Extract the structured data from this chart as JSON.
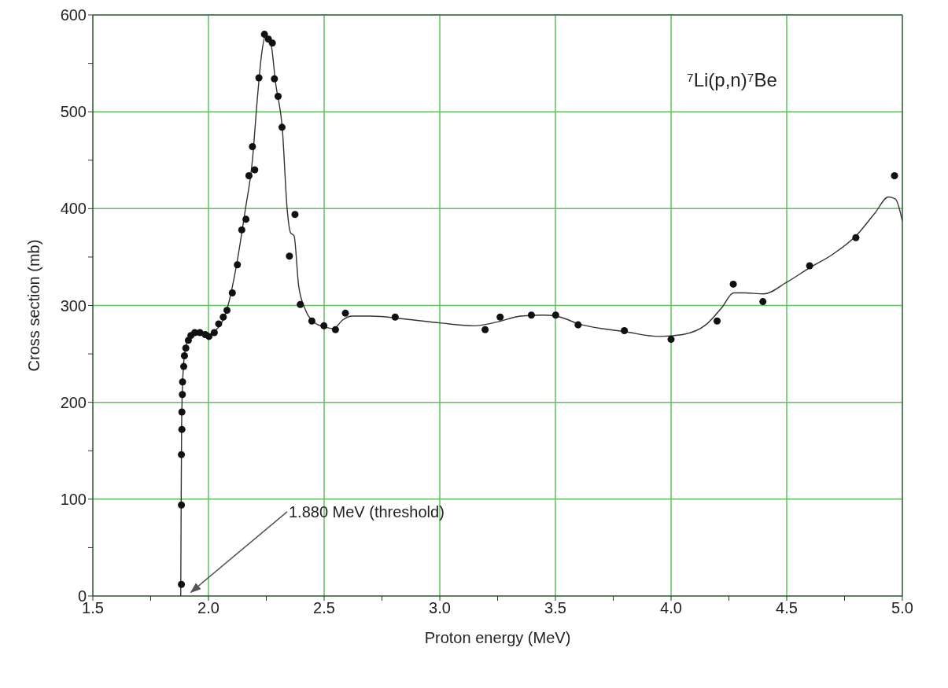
{
  "chart_data": {
    "type": "scatter",
    "title": "⁷Li(p,n)⁷Be",
    "xlabel": "Proton energy (MeV)",
    "ylabel": "Cross section (mb)",
    "xlim": [
      1.5,
      5.0
    ],
    "ylim": [
      0,
      600
    ],
    "xticks": [
      {
        "value": 1.5,
        "label": "1.5"
      },
      {
        "value": 1.75,
        "label": null
      },
      {
        "value": 2.0,
        "label": "2.0"
      },
      {
        "value": 2.25,
        "label": null
      },
      {
        "value": 2.5,
        "label": "2.5"
      },
      {
        "value": 2.75,
        "label": null
      },
      {
        "value": 3.0,
        "label": "3.0"
      },
      {
        "value": 3.25,
        "label": null
      },
      {
        "value": 3.5,
        "label": "3.5"
      },
      {
        "value": 3.75,
        "label": null
      },
      {
        "value": 4.0,
        "label": "4.0"
      },
      {
        "value": 4.25,
        "label": null
      },
      {
        "value": 4.5,
        "label": "4.5"
      },
      {
        "value": 4.75,
        "label": null
      },
      {
        "value": 5.0,
        "label": "5.0"
      }
    ],
    "yticks": [
      0,
      {
        "value": 50,
        "label": null
      },
      100,
      {
        "value": 150,
        "label": null
      },
      200,
      {
        "value": 250,
        "label": null
      },
      300,
      {
        "value": 350,
        "label": null
      },
      400,
      {
        "value": 450,
        "label": null
      },
      500,
      {
        "value": 550,
        "label": null
      },
      600
    ],
    "grid": true,
    "marker": "circle",
    "annotations": [
      "1.880 MeV (threshold)"
    ],
    "series": [
      {
        "type": "scatter",
        "color": "#111111",
        "x": [
          1.883,
          1.883,
          1.883,
          1.885,
          1.885,
          1.887,
          1.888,
          1.893,
          1.896,
          1.902,
          1.913,
          1.924,
          1.941,
          1.963,
          1.986,
          2.002,
          2.025,
          2.044,
          2.064,
          2.08,
          2.103,
          2.125,
          2.144,
          2.162,
          2.175,
          2.19,
          2.2,
          2.218,
          2.242,
          2.259,
          2.276,
          2.285,
          2.301,
          2.318,
          2.35,
          2.374,
          2.397,
          2.447,
          2.499,
          2.549,
          2.592,
          2.807,
          3.196,
          3.261,
          3.396,
          3.501,
          3.598,
          3.798,
          4.0,
          4.199,
          4.269,
          4.397,
          4.599,
          4.799,
          4.966
        ],
        "values": [
          12,
          94,
          146,
          172,
          190,
          208,
          221,
          237,
          248,
          256,
          264,
          269,
          272,
          272,
          270,
          268,
          272,
          281,
          288,
          295,
          313,
          342,
          378,
          389,
          434,
          464,
          440,
          535,
          580,
          575,
          571,
          534,
          516,
          484,
          351,
          394,
          301,
          284,
          279,
          275,
          292,
          288,
          275,
          288,
          290,
          290,
          280,
          274,
          265,
          284,
          322,
          304,
          341,
          370,
          434
        ]
      },
      {
        "type": "line",
        "color": "#333333",
        "line_style": "solid",
        "marker": "none",
        "x": [
          1.88,
          1.882,
          1.884,
          1.89,
          1.9,
          1.92,
          1.95,
          2.0,
          2.03,
          2.08,
          2.12,
          2.16,
          2.19,
          2.21,
          2.23,
          2.245,
          2.27,
          2.29,
          2.32,
          2.34,
          2.355,
          2.37,
          2.39,
          2.42,
          2.46,
          2.5,
          2.54,
          2.58,
          2.62,
          2.7,
          2.85,
          3.0,
          3.15,
          3.25,
          3.35,
          3.45,
          3.52,
          3.6,
          3.8,
          3.95,
          4.05,
          4.15,
          4.22,
          4.27,
          4.32,
          4.4,
          4.5,
          4.6,
          4.7,
          4.8,
          4.88,
          4.94,
          4.97,
          5.0
        ],
        "values": [
          0,
          100,
          180,
          230,
          255,
          268,
          272,
          270,
          274,
          296,
          340,
          400,
          450,
          510,
          560,
          578,
          570,
          530,
          480,
          400,
          375,
          372,
          320,
          295,
          282,
          278,
          276,
          285,
          289,
          289,
          286,
          282,
          279,
          283,
          289,
          290,
          288,
          281,
          273,
          268,
          270,
          280,
          298,
          313,
          313,
          312,
          324,
          339,
          353,
          372,
          395,
          412,
          410,
          387
        ]
      }
    ]
  }
}
